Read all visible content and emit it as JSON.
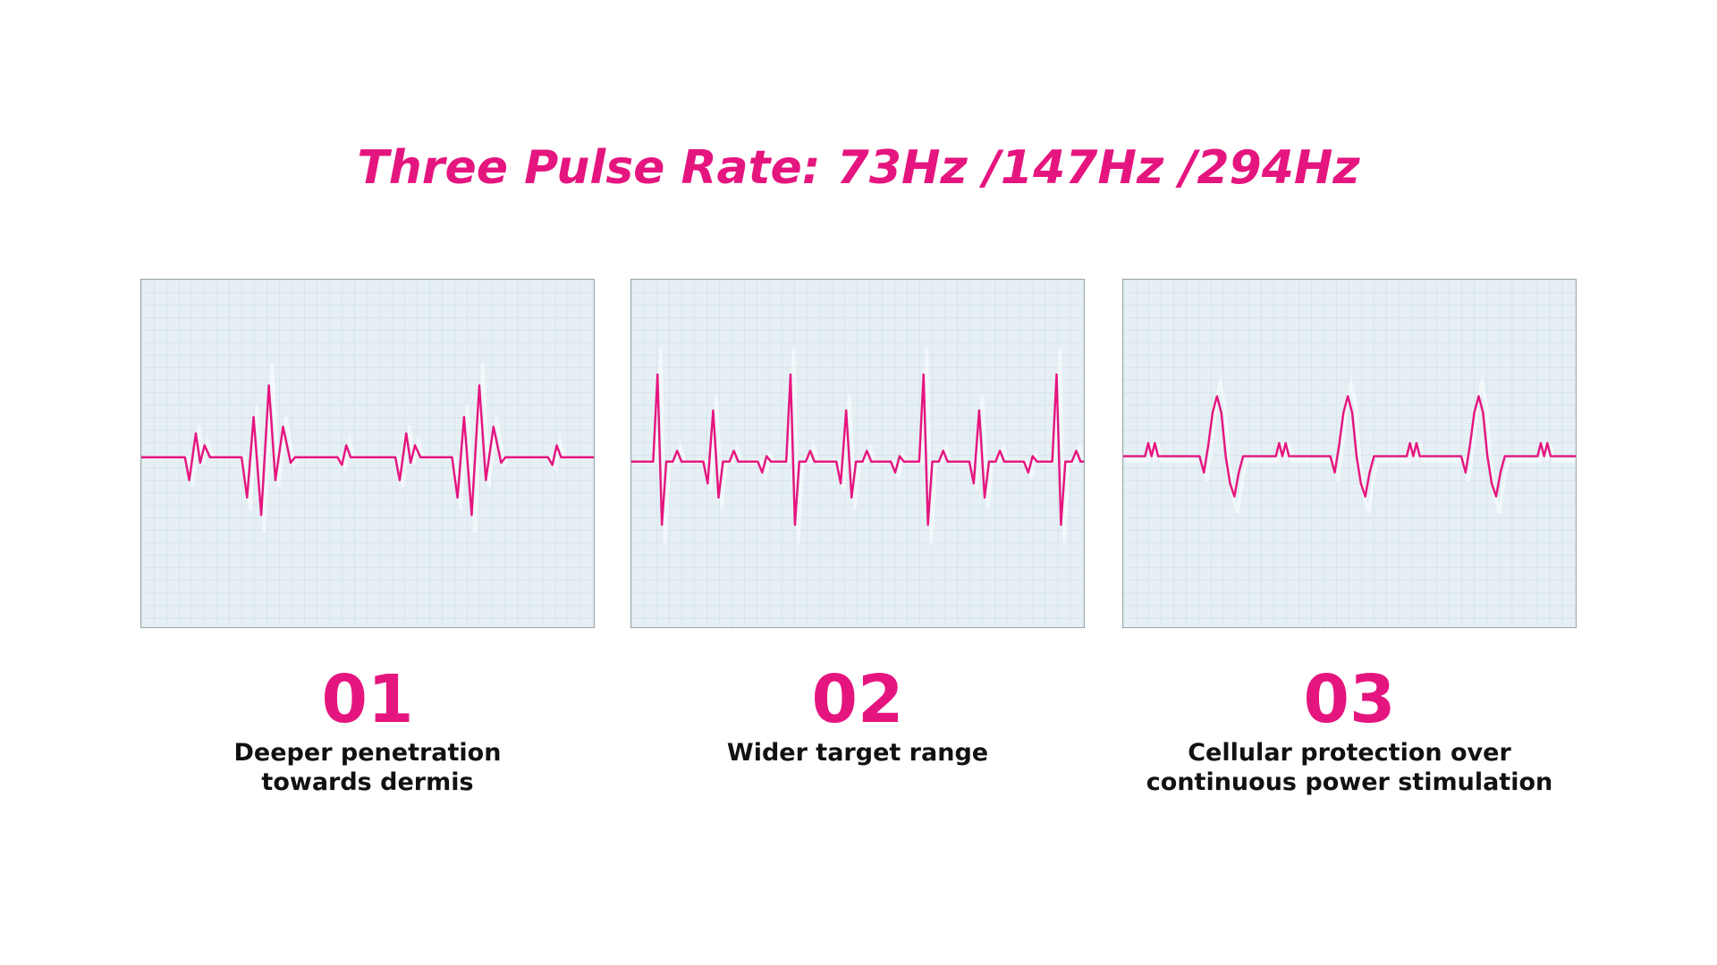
{
  "header": {
    "title": "Three Pulse Rate: 73Hz /147Hz /294Hz"
  },
  "panels": [
    {
      "number": "01",
      "description": [
        "Deeper penetration",
        "towards dermis"
      ]
    },
    {
      "number": "02",
      "description": [
        "Wider target range"
      ]
    },
    {
      "number": "03",
      "description": [
        "Cellular protection over",
        "continuous power stimulation"
      ]
    }
  ]
}
